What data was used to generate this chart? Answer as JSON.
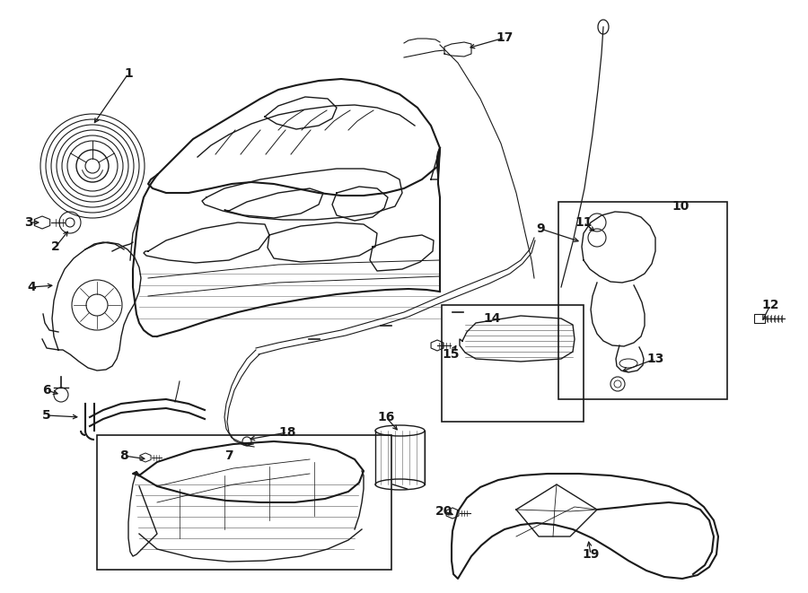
{
  "bg_color": "#ffffff",
  "line_color": "#1a1a1a",
  "figsize": [
    9.0,
    6.61
  ],
  "dpi": 100,
  "lw": 1.0,
  "lw_thick": 1.5,
  "label_fontsize": 10,
  "label_fontsize_large": 11
}
